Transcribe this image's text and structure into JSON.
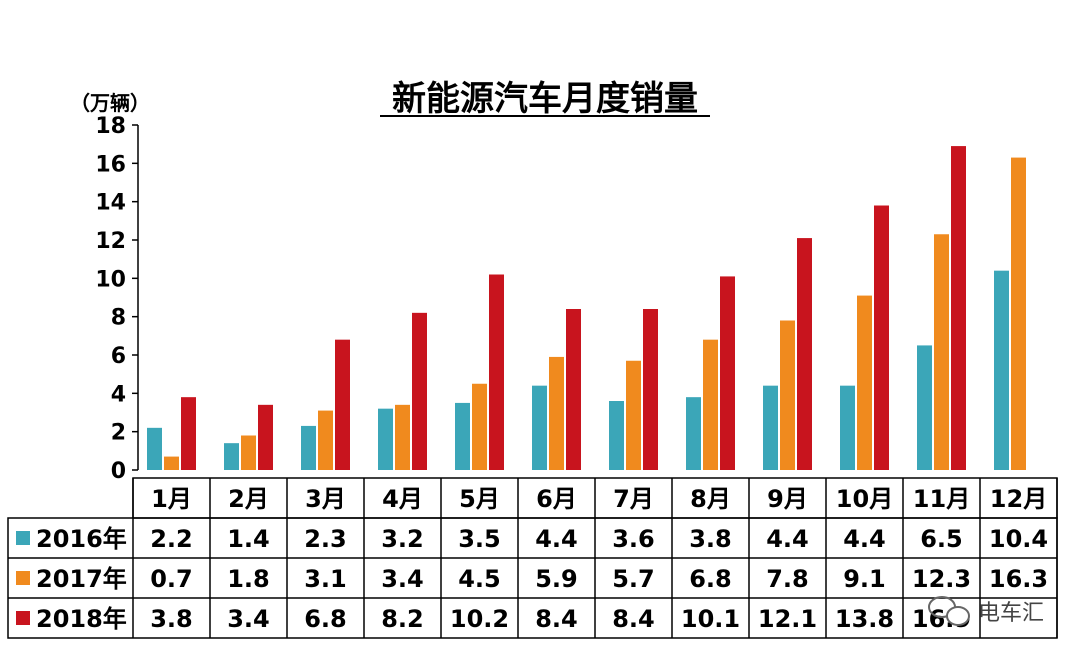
{
  "chart_data": {
    "type": "bar",
    "title": "新能源汽车月度销量",
    "unit": "（万辆）",
    "ylim": [
      0,
      18
    ],
    "yticks": [
      "0",
      "2",
      "4",
      "6",
      "8",
      "10",
      "12",
      "14",
      "16",
      "18"
    ],
    "categories": [
      "1月",
      "2月",
      "3月",
      "4月",
      "5月",
      "6月",
      "7月",
      "8月",
      "9月",
      "10月",
      "11月",
      "12月"
    ],
    "series": [
      {
        "name": "2016年",
        "color": "#3ba6b8",
        "values": [
          2.2,
          1.4,
          2.3,
          3.2,
          3.5,
          4.4,
          3.6,
          3.8,
          4.4,
          4.4,
          6.5,
          10.4
        ],
        "labels": [
          "2.2",
          "1.4",
          "2.3",
          "3.2",
          "3.5",
          "4.4",
          "3.6",
          "3.8",
          "4.4",
          "4.4",
          "6.5",
          "10.4"
        ]
      },
      {
        "name": "2017年",
        "color": "#f08a1e",
        "values": [
          0.7,
          1.8,
          3.1,
          3.4,
          4.5,
          5.9,
          5.7,
          6.8,
          7.8,
          9.1,
          12.3,
          16.3
        ],
        "labels": [
          "0.7",
          "1.8",
          "3.1",
          "3.4",
          "4.5",
          "5.9",
          "5.7",
          "6.8",
          "7.8",
          "9.1",
          "12.3",
          "16.3"
        ]
      },
      {
        "name": "2018年",
        "color": "#c8141e",
        "values": [
          3.8,
          3.4,
          6.8,
          8.2,
          10.2,
          8.4,
          8.4,
          10.1,
          12.1,
          13.8,
          16.9,
          null
        ],
        "labels": [
          "3.8",
          "3.4",
          "6.8",
          "8.2",
          "10.2",
          "8.4",
          "8.4",
          "10.1",
          "12.1",
          "13.8",
          "16.9",
          ""
        ]
      }
    ],
    "grid": false,
    "legend": "data-table-left"
  },
  "watermark": {
    "text": "电车汇"
  }
}
